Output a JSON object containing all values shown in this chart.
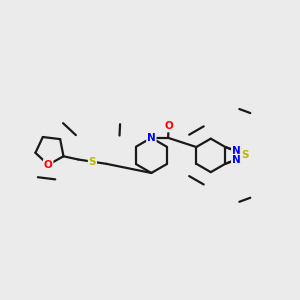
{
  "background_color": "#ebebeb",
  "bond_color": "#1a1a1a",
  "atom_colors": {
    "N": "#0000ff",
    "O": "#ff0000",
    "S": "#b8b800",
    "C": "#1a1a1a"
  },
  "figsize": [
    3.0,
    3.0
  ],
  "dpi": 100,
  "lw": 1.6,
  "fs": 7.5
}
